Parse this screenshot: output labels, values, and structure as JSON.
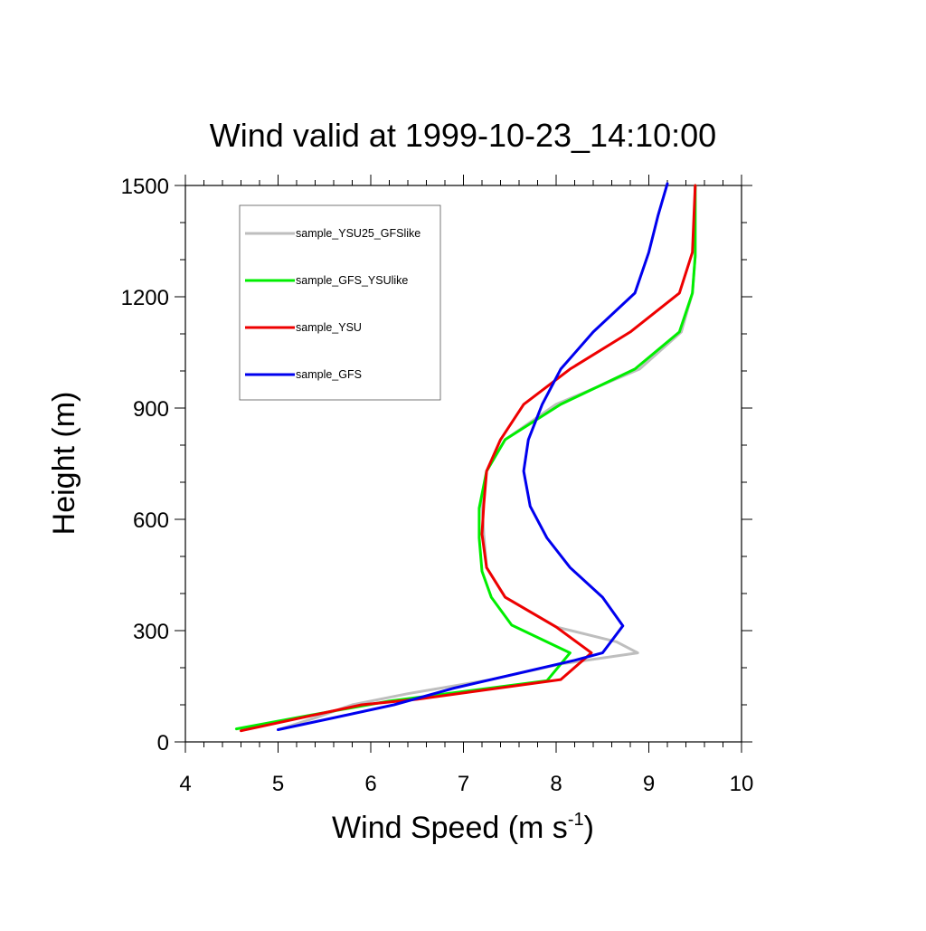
{
  "chart_data": {
    "type": "line",
    "title": "Wind valid at 1999-10-23_14:10:00",
    "xlabel": "Wind Speed (m s",
    "xlabel_sup": "-1",
    "xlabel_suffix": ")",
    "ylabel": "Height (m)",
    "xlim": [
      4,
      10
    ],
    "ylim": [
      0,
      1500
    ],
    "x_ticks": [
      4,
      5,
      6,
      7,
      8,
      9,
      10
    ],
    "y_ticks": [
      0,
      300,
      600,
      900,
      1200,
      1500
    ],
    "grid": false,
    "legend_position": "top-left",
    "series": [
      {
        "name": "sample_YSU25_GFSlike",
        "color": "#bebebe",
        "points": [
          [
            5.0,
            33
          ],
          [
            5.4,
            65
          ],
          [
            5.8,
            100
          ],
          [
            6.4,
            130
          ],
          [
            7.3,
            168
          ],
          [
            8.05,
            210
          ],
          [
            8.88,
            240
          ],
          [
            8.65,
            270
          ],
          [
            8.0,
            310
          ],
          [
            7.45,
            390
          ],
          [
            7.25,
            470
          ],
          [
            7.22,
            560
          ],
          [
            7.2,
            640
          ],
          [
            7.25,
            730
          ],
          [
            7.45,
            815
          ],
          [
            8.0,
            910
          ],
          [
            8.9,
            1005
          ],
          [
            9.35,
            1105
          ],
          [
            9.47,
            1210
          ],
          [
            9.5,
            1310
          ],
          [
            9.5,
            1500
          ]
        ]
      },
      {
        "name": "sample_GFS_YSUlike",
        "color": "#00ee00",
        "points": [
          [
            4.55,
            35
          ],
          [
            5.3,
            70
          ],
          [
            6.2,
            110
          ],
          [
            7.9,
            165
          ],
          [
            8.15,
            240
          ],
          [
            7.52,
            315
          ],
          [
            7.3,
            390
          ],
          [
            7.2,
            460
          ],
          [
            7.17,
            550
          ],
          [
            7.17,
            630
          ],
          [
            7.25,
            730
          ],
          [
            7.45,
            815
          ],
          [
            8.05,
            910
          ],
          [
            8.85,
            1005
          ],
          [
            9.33,
            1105
          ],
          [
            9.47,
            1210
          ],
          [
            9.5,
            1310
          ],
          [
            9.5,
            1500
          ]
        ]
      },
      {
        "name": "sample_YSU",
        "color": "#ee0000",
        "points": [
          [
            4.6,
            30
          ],
          [
            5.9,
            100
          ],
          [
            6.5,
            115
          ],
          [
            8.05,
            168
          ],
          [
            8.38,
            240
          ],
          [
            8.0,
            310
          ],
          [
            7.45,
            390
          ],
          [
            7.25,
            470
          ],
          [
            7.2,
            560
          ],
          [
            7.22,
            640
          ],
          [
            7.25,
            730
          ],
          [
            7.4,
            815
          ],
          [
            7.65,
            910
          ],
          [
            8.15,
            1005
          ],
          [
            8.8,
            1105
          ],
          [
            9.33,
            1210
          ],
          [
            9.47,
            1320
          ],
          [
            9.5,
            1500
          ]
        ]
      },
      {
        "name": "sample_GFS",
        "color": "#0000ee",
        "points": [
          [
            5.0,
            33
          ],
          [
            5.6,
            65
          ],
          [
            6.25,
            100
          ],
          [
            6.9,
            145
          ],
          [
            8.2,
            220
          ],
          [
            8.5,
            240
          ],
          [
            8.72,
            313
          ],
          [
            8.5,
            390
          ],
          [
            8.15,
            470
          ],
          [
            7.9,
            550
          ],
          [
            7.72,
            635
          ],
          [
            7.65,
            730
          ],
          [
            7.7,
            815
          ],
          [
            7.85,
            910
          ],
          [
            8.05,
            1005
          ],
          [
            8.4,
            1105
          ],
          [
            8.85,
            1210
          ],
          [
            9.0,
            1320
          ],
          [
            9.1,
            1420
          ],
          [
            9.2,
            1505
          ]
        ]
      }
    ]
  }
}
